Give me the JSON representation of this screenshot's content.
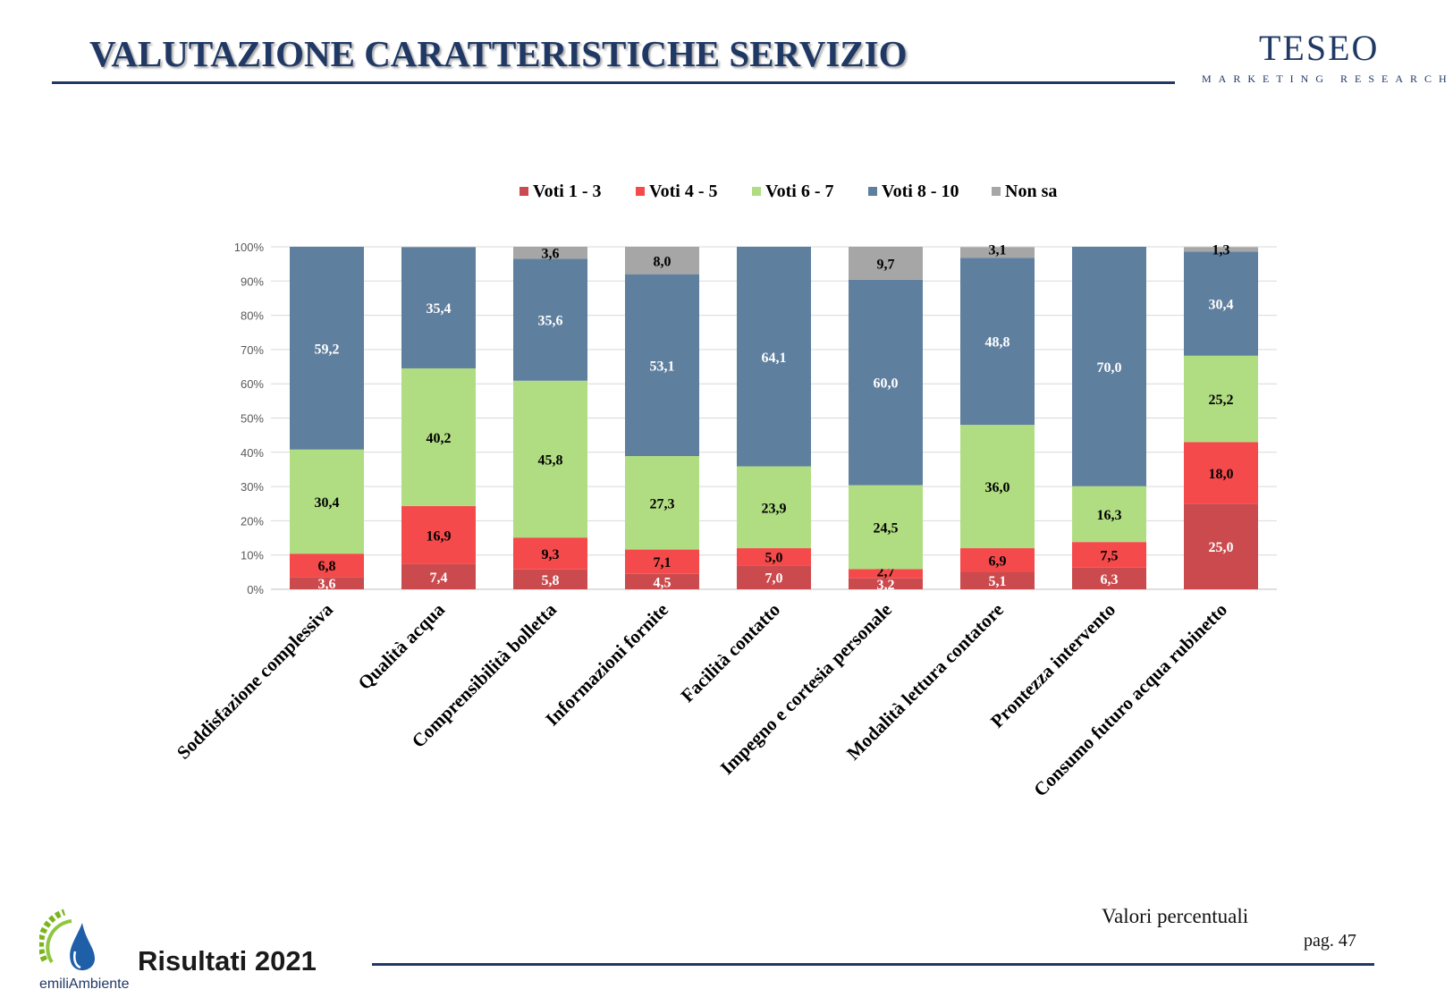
{
  "header": {
    "title": "VALUTAZIONE CARATTERISTICHE SERVIZIO",
    "logo_name": "TESEO",
    "logo_sub": "MARKETING RESEARCH"
  },
  "footer": {
    "note": "Valori percentuali",
    "page": "pag. 47",
    "results": "Risultati 2021",
    "brand": "emiliAmbiente"
  },
  "colors": {
    "title": "#1f3864",
    "voti_1_3": "#cb4a4d",
    "voti_4_5": "#f54a4b",
    "voti_6_7": "#b1dd82",
    "voti_8_10": "#5f7f9f",
    "non_sa": "#a6a6a6"
  },
  "chart_data": {
    "type": "bar",
    "stacked": true,
    "categories": [
      "Soddisfazione complessiva",
      "Qualità acqua",
      "Comprensibilità bolletta",
      "Informazioni fornite",
      "Facilità contatto",
      "Impegno e cortesia personale",
      "Modalità lettura contatore",
      "Prontezza intervento",
      "Consumo futuro acqua rubinetto"
    ],
    "series": [
      {
        "name": "Voti 1 - 3",
        "color": "#cb4a4d",
        "label_color": "#ffffff",
        "values": [
          3.6,
          7.4,
          5.8,
          4.5,
          7.0,
          3.2,
          5.1,
          6.3,
          25.0
        ],
        "labels": [
          "3,6",
          "7,4",
          "5,8",
          "4,5",
          "7,0",
          "3,2",
          "5,1",
          "6,3",
          "25,0"
        ]
      },
      {
        "name": "Voti 4 - 5",
        "color": "#f54a4b",
        "label_color": "#000000",
        "values": [
          6.8,
          16.9,
          9.3,
          7.1,
          5.0,
          2.7,
          6.9,
          7.5,
          18.0
        ],
        "labels": [
          "6,8",
          "16,9",
          "9,3",
          "7,1",
          "5,0",
          "2,7",
          "6,9",
          "7,5",
          "18,0"
        ]
      },
      {
        "name": "Voti 6 - 7",
        "color": "#b1dd82",
        "label_color": "#000000",
        "values": [
          30.4,
          40.2,
          45.8,
          27.3,
          23.9,
          24.5,
          36.0,
          16.3,
          25.2
        ],
        "labels": [
          "30,4",
          "40,2",
          "45,8",
          "27,3",
          "23,9",
          "24,5",
          "36,0",
          "16,3",
          "25,2"
        ]
      },
      {
        "name": "Voti 8 - 10",
        "color": "#5f7f9f",
        "label_color": "#ffffff",
        "values": [
          59.2,
          35.4,
          35.6,
          53.1,
          64.1,
          60.0,
          48.8,
          70.0,
          30.4
        ],
        "labels": [
          "59,2",
          "35,4",
          "35,6",
          "53,1",
          "64,1",
          "60,0",
          "48,8",
          "70,0",
          "30,4"
        ]
      },
      {
        "name": "Non sa",
        "color": "#a6a6a6",
        "label_color": "#000000",
        "values": [
          0,
          0,
          3.6,
          8.0,
          0,
          9.7,
          3.1,
          0,
          1.3
        ],
        "labels": [
          "",
          "",
          "3,6",
          "8,0",
          "",
          "9,7",
          "3,1",
          "",
          "1,3"
        ]
      }
    ],
    "ylim": [
      0,
      100
    ],
    "yticks": [
      "0%",
      "10%",
      "20%",
      "30%",
      "40%",
      "50%",
      "60%",
      "70%",
      "80%",
      "90%",
      "100%"
    ],
    "grid": true,
    "legend_position": "top-center"
  }
}
